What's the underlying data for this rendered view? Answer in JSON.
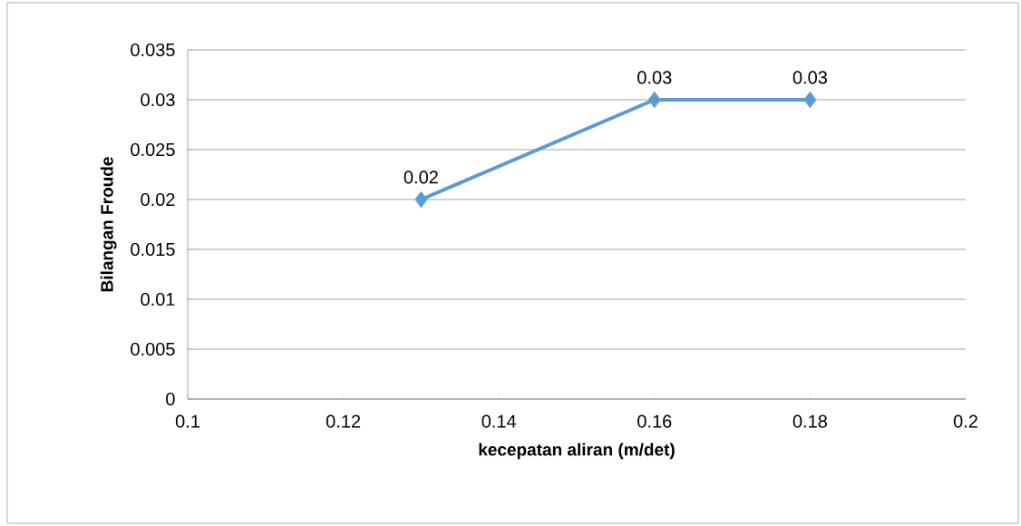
{
  "chart_data": {
    "type": "line",
    "xlabel": "kecepatan aliran (m/det)",
    "ylabel": "Bilangan Froude",
    "series": [
      {
        "color": "#5b9bd5",
        "x": [
          0.13,
          0.16,
          0.18
        ],
        "values": [
          0.02,
          0.03,
          0.03
        ]
      }
    ],
    "xlim": [
      0.1,
      0.2
    ],
    "xticks": [
      0.1,
      0.12,
      0.14,
      0.16,
      0.18,
      0.2
    ],
    "ylim": [
      0,
      0.035
    ],
    "yticks": [
      0,
      0.005,
      0.01,
      0.015,
      0.02,
      0.025,
      0.03,
      0.035
    ],
    "grid": "y",
    "marker": "diamond",
    "line_style": "solid",
    "data_labels": true
  }
}
